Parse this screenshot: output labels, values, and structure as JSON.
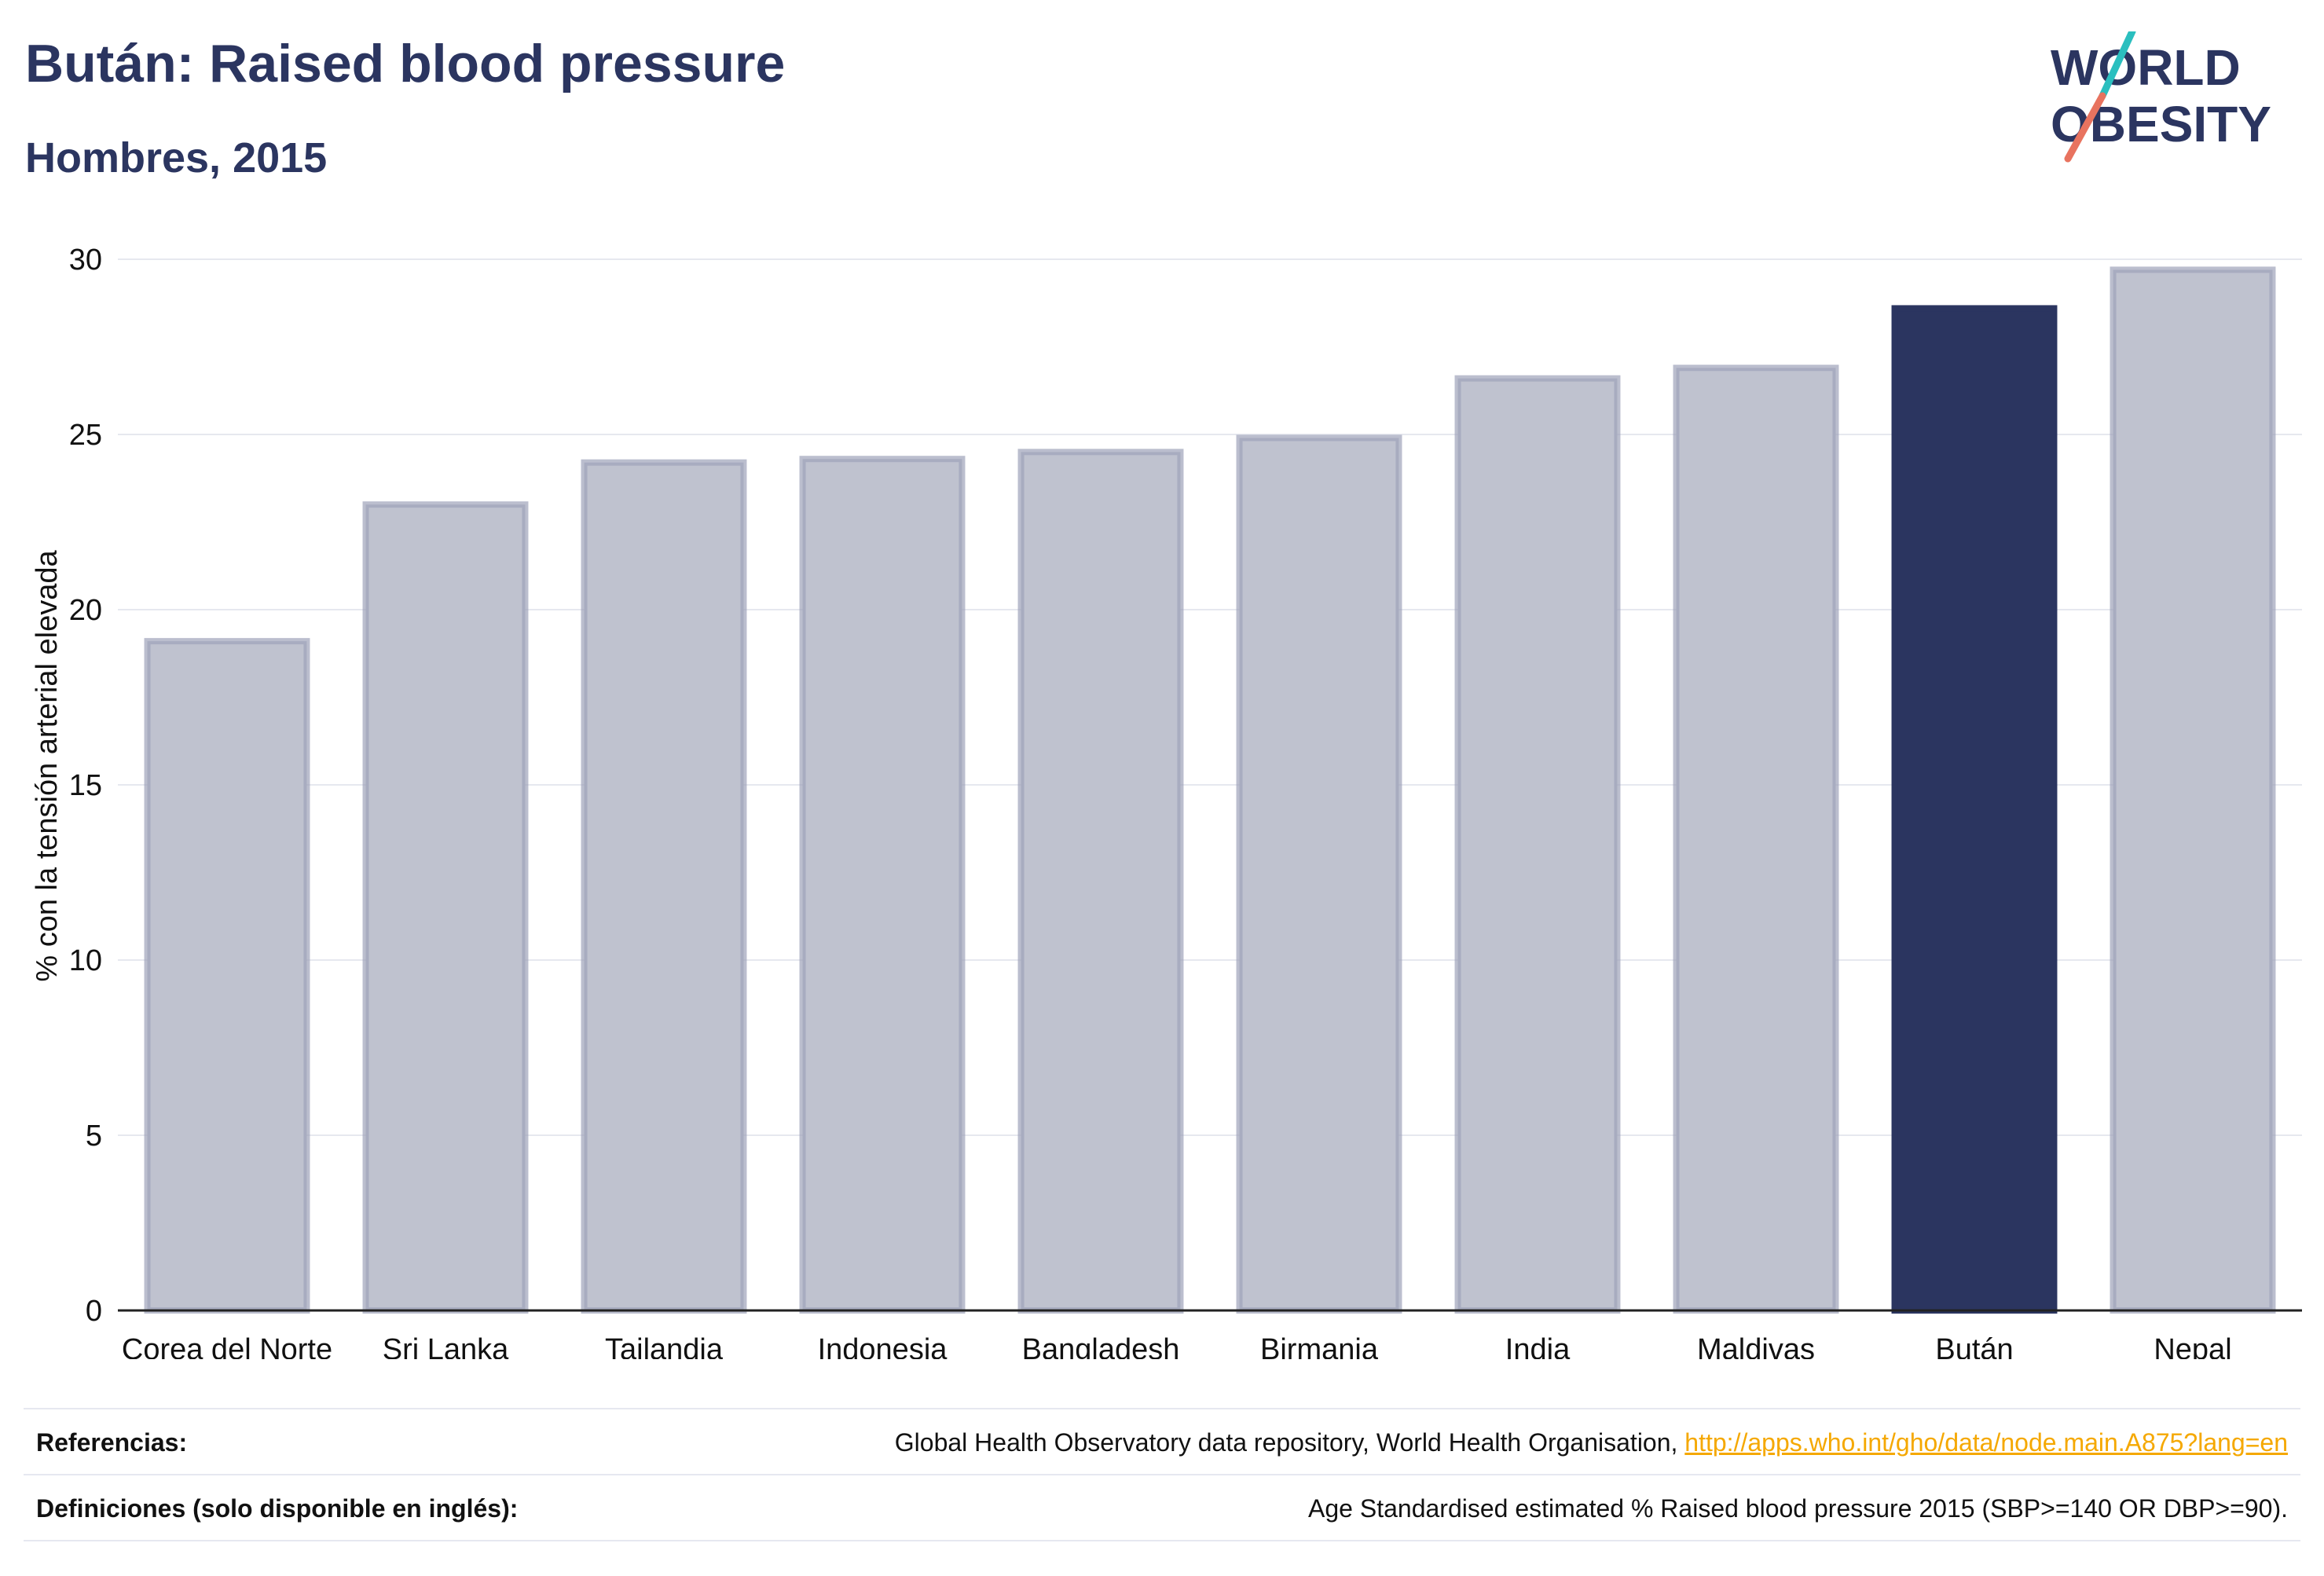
{
  "header": {
    "title": "Bután: Raised blood pressure",
    "subtitle": "Hombres, 2015"
  },
  "logo": {
    "line1": "WORLD",
    "line2": "OBESITY",
    "colors": {
      "text": "#2b3560",
      "slash_teal": "#2bbfbf",
      "slash_coral": "#e8735f"
    }
  },
  "chart_data": {
    "type": "bar",
    "ylabel": "% con la tensión arterial elevada",
    "xlabel": "",
    "ylim": [
      0,
      30
    ],
    "yticks": [
      0,
      5,
      10,
      15,
      20,
      25,
      30
    ],
    "categories": [
      "Corea del Norte",
      "Sri Lanka",
      "Tailandia",
      "Indonesia",
      "Bangladesh",
      "Birmania",
      "India",
      "Maldivas",
      "Bután",
      "Nepal"
    ],
    "values": [
      19.1,
      23.0,
      24.2,
      24.3,
      24.5,
      24.9,
      26.6,
      26.9,
      28.6,
      29.7
    ],
    "highlight": "Bután",
    "grid": true,
    "colors": {
      "bar": "#bfc2cf",
      "bar_edge": "#9ea3b9",
      "highlight": "#2b3560"
    }
  },
  "footer": {
    "references_label": "Referencias:",
    "references_text": "Global Health Observatory data repository, World Health Organisation, ",
    "references_link": "http://apps.who.int/gho/data/node.main.A875?lang=en",
    "definitions_label": "Definiciones (solo disponible en inglés):",
    "definitions_text": "Age Standardised estimated % Raised blood pressure 2015 (SBP>=140 OR DBP>=90)."
  }
}
